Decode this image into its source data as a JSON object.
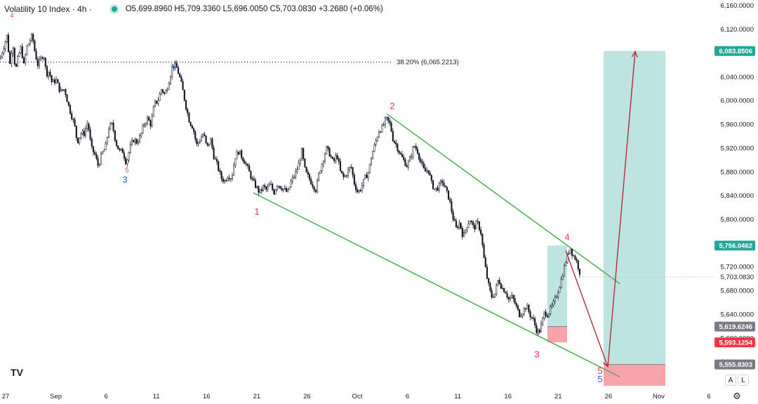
{
  "header": {
    "symbol": "Volatility 10 Index · 4h ·",
    "ohlc_text": "O5,699.8960 H5,709.3360 L5,696.0050 C5,703.0830 +3.2680 (+0.06%)",
    "status_color": "#26a69a"
  },
  "logo_text": "TV",
  "scale_buttons": {
    "auto": "A",
    "log": "L"
  },
  "settings_icon": "gear-icon",
  "chart_data": {
    "type": "candlestick",
    "y_range": [
      5520,
      6165
    ],
    "price_ticks": [
      "6,160.0000",
      "6,120.0000",
      "6,080.0000",
      "6,040.0000",
      "6,000.0000",
      "5,960.0000",
      "5,920.0000",
      "5,880.0000",
      "5,840.0000",
      "5,800.0000",
      "5,760.0000",
      "5,720.0000",
      "5,680.0000",
      "5,640.0000",
      "5,600.0000",
      "5,560.0000"
    ],
    "time_ticks": [
      "27",
      "Sep",
      "6",
      "11",
      "16",
      "21",
      "26",
      "Oct",
      "6",
      "11",
      "16",
      "21",
      "26",
      "Nov",
      "6"
    ],
    "current_price": "5,703.0830",
    "price_badges": [
      {
        "label": "6,083.8506",
        "value": 6083.8506,
        "color": "#26a69a"
      },
      {
        "label": "5,756.0462",
        "value": 5756.0462,
        "color": "#26a69a"
      },
      {
        "label": "5,619.6246",
        "value": 5619.6246,
        "color": "#787b86"
      },
      {
        "label": "5,593.1254",
        "value": 5593.1254,
        "color": "#f23645"
      },
      {
        "label": "5,555.8303",
        "value": 5555.8303,
        "color": "#787b86"
      }
    ],
    "fib_label": "38.20% (6,065.2213)",
    "fib_value": 6065.2213,
    "price_path": [
      [
        0,
        6070
      ],
      [
        5,
        6090
      ],
      [
        10,
        6110
      ],
      [
        14,
        6060
      ],
      [
        18,
        6100
      ],
      [
        22,
        6050
      ],
      [
        26,
        6075
      ],
      [
        30,
        6090
      ],
      [
        34,
        6060
      ],
      [
        38,
        6090
      ],
      [
        42,
        6100
      ],
      [
        46,
        6110
      ],
      [
        50,
        6080
      ],
      [
        54,
        6060
      ],
      [
        58,
        6070
      ],
      [
        62,
        6080
      ],
      [
        66,
        6045
      ],
      [
        70,
        6050
      ],
      [
        74,
        6030
      ],
      [
        80,
        6035
      ],
      [
        86,
        6015
      ],
      [
        92,
        6020
      ],
      [
        98,
        5990
      ],
      [
        102,
        5975
      ],
      [
        106,
        5960
      ],
      [
        110,
        5930
      ],
      [
        115,
        5945
      ],
      [
        120,
        5945
      ],
      [
        125,
        5965
      ],
      [
        130,
        5920
      ],
      [
        135,
        5910
      ],
      [
        140,
        5890
      ],
      [
        145,
        5910
      ],
      [
        150,
        5920
      ],
      [
        155,
        5955
      ],
      [
        160,
        5960
      ],
      [
        165,
        5930
      ],
      [
        170,
        5915
      ],
      [
        175,
        5915
      ],
      [
        180,
        5895
      ],
      [
        185,
        5920
      ],
      [
        190,
        5935
      ],
      [
        195,
        5930
      ],
      [
        200,
        5940
      ],
      [
        205,
        5960
      ],
      [
        210,
        5970
      ],
      [
        215,
        5960
      ],
      [
        220,
        5995
      ],
      [
        225,
        6000
      ],
      [
        230,
        6020
      ],
      [
        235,
        6010
      ],
      [
        240,
        6030
      ],
      [
        245,
        6055
      ],
      [
        248,
        6060
      ],
      [
        252,
        6055
      ],
      [
        256,
        6040
      ],
      [
        260,
        6020
      ],
      [
        265,
        5990
      ],
      [
        270,
        5965
      ],
      [
        275,
        5955
      ],
      [
        280,
        5925
      ],
      [
        285,
        5935
      ],
      [
        290,
        5945
      ],
      [
        295,
        5920
      ],
      [
        300,
        5935
      ],
      [
        305,
        5905
      ],
      [
        310,
        5890
      ],
      [
        315,
        5870
      ],
      [
        320,
        5865
      ],
      [
        325,
        5875
      ],
      [
        330,
        5870
      ],
      [
        335,
        5905
      ],
      [
        340,
        5915
      ],
      [
        345,
        5905
      ],
      [
        350,
        5895
      ],
      [
        355,
        5880
      ],
      [
        360,
        5865
      ],
      [
        365,
        5855
      ],
      [
        370,
        5845
      ],
      [
        375,
        5855
      ],
      [
        380,
        5850
      ],
      [
        385,
        5860
      ],
      [
        390,
        5845
      ],
      [
        395,
        5860
      ],
      [
        400,
        5855
      ],
      [
        405,
        5850
      ],
      [
        410,
        5845
      ],
      [
        415,
        5865
      ],
      [
        420,
        5875
      ],
      [
        425,
        5890
      ],
      [
        430,
        5915
      ],
      [
        435,
        5880
      ],
      [
        440,
        5870
      ],
      [
        445,
        5860
      ],
      [
        450,
        5850
      ],
      [
        455,
        5880
      ],
      [
        460,
        5900
      ],
      [
        465,
        5920
      ],
      [
        470,
        5910
      ],
      [
        475,
        5895
      ],
      [
        480,
        5910
      ],
      [
        485,
        5880
      ],
      [
        490,
        5870
      ],
      [
        495,
        5880
      ],
      [
        500,
        5890
      ],
      [
        505,
        5860
      ],
      [
        510,
        5845
      ],
      [
        515,
        5855
      ],
      [
        520,
        5870
      ],
      [
        525,
        5880
      ],
      [
        530,
        5910
      ],
      [
        535,
        5930
      ],
      [
        540,
        5950
      ],
      [
        545,
        5955
      ],
      [
        550,
        5970
      ],
      [
        553,
        5965
      ],
      [
        556,
        5960
      ],
      [
        560,
        5935
      ],
      [
        565,
        5925
      ],
      [
        570,
        5910
      ],
      [
        575,
        5900
      ],
      [
        580,
        5890
      ],
      [
        585,
        5905
      ],
      [
        590,
        5925
      ],
      [
        595,
        5915
      ],
      [
        600,
        5895
      ],
      [
        605,
        5880
      ],
      [
        610,
        5885
      ],
      [
        615,
        5860
      ],
      [
        620,
        5850
      ],
      [
        625,
        5855
      ],
      [
        630,
        5865
      ],
      [
        635,
        5850
      ],
      [
        640,
        5835
      ],
      [
        645,
        5805
      ],
      [
        650,
        5785
      ],
      [
        655,
        5795
      ],
      [
        660,
        5770
      ],
      [
        665,
        5790
      ],
      [
        670,
        5800
      ],
      [
        675,
        5785
      ],
      [
        680,
        5795
      ],
      [
        685,
        5780
      ],
      [
        690,
        5730
      ],
      [
        695,
        5695
      ],
      [
        700,
        5670
      ],
      [
        705,
        5675
      ],
      [
        710,
        5700
      ],
      [
        715,
        5685
      ],
      [
        720,
        5680
      ],
      [
        725,
        5665
      ],
      [
        730,
        5670
      ],
      [
        735,
        5655
      ],
      [
        740,
        5640
      ],
      [
        745,
        5645
      ],
      [
        750,
        5655
      ],
      [
        755,
        5640
      ],
      [
        760,
        5630
      ],
      [
        765,
        5612
      ],
      [
        768,
        5610
      ],
      [
        772,
        5625
      ],
      [
        776,
        5645
      ],
      [
        780,
        5640
      ],
      [
        785,
        5650
      ],
      [
        790,
        5662
      ],
      [
        795,
        5680
      ],
      [
        800,
        5700
      ],
      [
        805,
        5725
      ],
      [
        810,
        5745
      ],
      [
        813,
        5752
      ],
      [
        816,
        5740
      ],
      [
        820,
        5735
      ],
      [
        824,
        5720
      ],
      [
        828,
        5703
      ]
    ],
    "wave_labels": [
      {
        "text": "4",
        "x": 17,
        "y": 6140,
        "color": "#f23645",
        "small": true
      },
      {
        "text": "4",
        "x": 249,
        "y": 6055,
        "color": "#2962ff"
      },
      {
        "text": "5",
        "x": 181,
        "y": 5880,
        "color": "#f23645",
        "small": true
      },
      {
        "text": "3",
        "x": 178,
        "y": 5862,
        "color": "#2962ff"
      },
      {
        "text": "1",
        "x": 366,
        "y": 5808,
        "color": "#f23645"
      },
      {
        "text": "2",
        "x": 559,
        "y": 5986,
        "color": "#f23645"
      },
      {
        "text": "3",
        "x": 765,
        "y": 5568,
        "color": "#f23645"
      },
      {
        "text": "4",
        "x": 808,
        "y": 5765,
        "color": "#f23645"
      },
      {
        "text": "5",
        "x": 855,
        "y": 5540,
        "color": "#f23645"
      },
      {
        "text": "5",
        "x": 855,
        "y": 5526,
        "color": "#2962ff"
      }
    ],
    "projection": {
      "points": [
        [
          806,
          5748
        ],
        [
          866,
          5552
        ],
        [
          905,
          6083
        ]
      ],
      "color": "#b23a48"
    },
    "channel": {
      "upper": [
        [
          551,
          5978
        ],
        [
          883,
          5692
        ]
      ],
      "lower": [
        [
          361,
          5845
        ],
        [
          883,
          5535
        ]
      ],
      "color": "#4caf50"
    },
    "position_small": {
      "x0": 780,
      "x1": 808,
      "entry": 5619.6246,
      "target": 5756.0462,
      "stop": 5593.1254
    },
    "position_big": {
      "x0": 860,
      "x1": 948,
      "entry": 5555.8303,
      "target": 6083.8506,
      "stop": 5520
    }
  }
}
